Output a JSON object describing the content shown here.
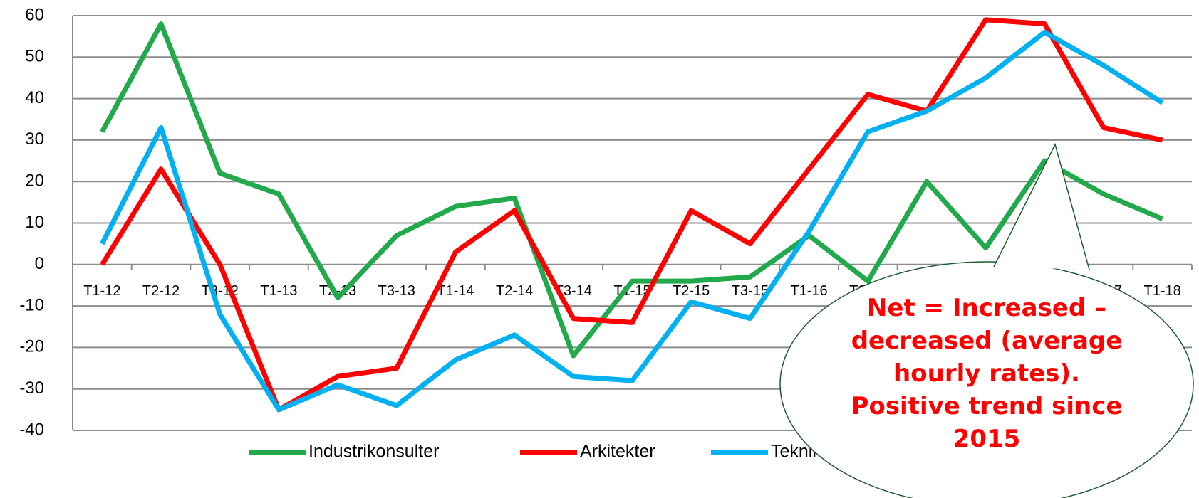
{
  "chart_data": {
    "type": "line",
    "categories": [
      "T1-12",
      "T2-12",
      "T3-12",
      "T1-13",
      "T2-13",
      "T3-13",
      "T1-14",
      "T2-14",
      "T3-14",
      "T1-15",
      "T2-15",
      "T3-15",
      "T1-16",
      "T2-16",
      "T3-16",
      "T1-17",
      "T2-17",
      "T3-17",
      "T1-18"
    ],
    "series": [
      {
        "name": "Industrikonsulter",
        "color": "#22a94b",
        "values": [
          32,
          58,
          22,
          17,
          -8,
          7,
          14,
          16,
          -22,
          -4,
          -4,
          -3,
          7,
          -4,
          20,
          4,
          25,
          17,
          11
        ]
      },
      {
        "name": "Arkitekter",
        "color": "#ff0000",
        "values": [
          0,
          23,
          0,
          -35,
          -27,
          -25,
          3,
          13,
          -13,
          -14,
          13,
          5,
          23,
          41,
          37,
          59,
          58,
          33,
          30
        ]
      },
      {
        "name": "Teknikkonsulter",
        "color": "#00b0f0",
        "values": [
          5,
          33,
          -12,
          -35,
          -29,
          -34,
          -23,
          -17,
          -27,
          -28,
          -9,
          -13,
          8,
          32,
          37,
          45,
          56,
          48,
          39
        ]
      }
    ],
    "ylim": [
      -40,
      60
    ],
    "yticks": [
      -40,
      -30,
      -20,
      -10,
      0,
      10,
      20,
      30,
      40,
      50,
      60
    ],
    "grid": true,
    "legend": "bottom",
    "annotation": "Net = Increased – decreased (average hourly rates). Positive trend since 2015"
  }
}
